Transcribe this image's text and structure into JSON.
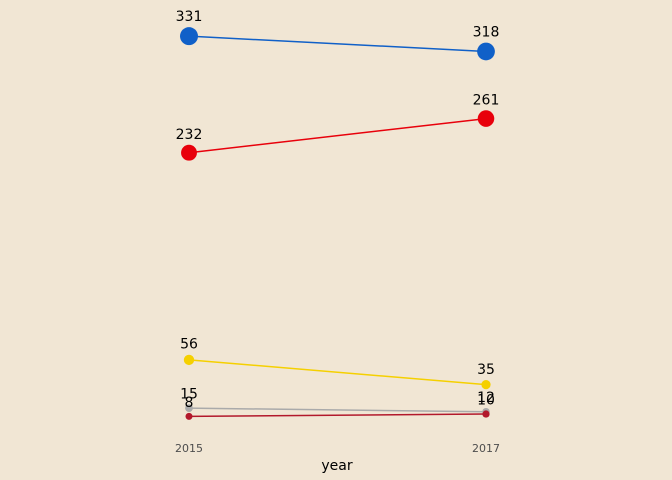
{
  "chart_data": {
    "type": "line",
    "title": "",
    "xlabel": "year",
    "ylabel": "",
    "x": [
      "2015",
      "2017"
    ],
    "grid": false,
    "legend": "none",
    "series": [
      {
        "values": [
          331,
          318
        ],
        "color": "#1060C8"
      },
      {
        "values": [
          232,
          261
        ],
        "color": "#E8000B"
      },
      {
        "values": [
          56,
          35
        ],
        "color": "#F5D000"
      },
      {
        "values": [
          15,
          12
        ],
        "color": "#AAAAAA"
      },
      {
        "values": [
          8,
          10
        ],
        "color": "#B2182B"
      }
    ]
  }
}
